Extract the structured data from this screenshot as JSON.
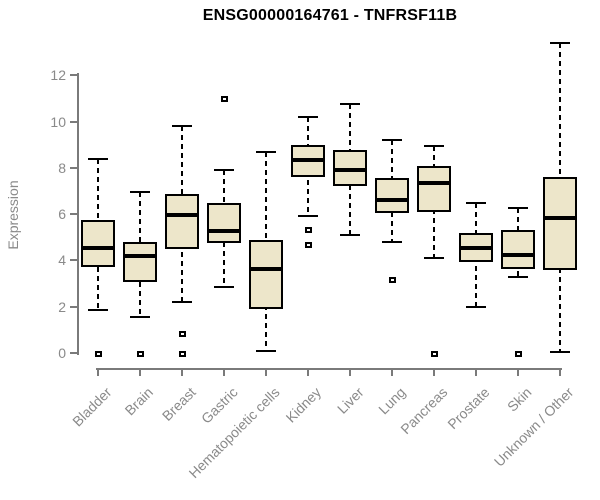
{
  "title": "ENSG00000164761 - TNFRSF11B",
  "chart_data": {
    "type": "boxplot",
    "title": "ENSG00000164761 - TNFRSF11B",
    "xlabel": "",
    "ylabel": "Expression",
    "yticks": [
      0,
      2,
      4,
      6,
      8,
      10,
      12
    ],
    "ylim": [
      0,
      13.5
    ],
    "grid": false,
    "legend": "none",
    "categories": [
      "Bladder",
      "Brain",
      "Breast",
      "Gastric",
      "Hematopoietic cells",
      "Kidney",
      "Liver",
      "Lung",
      "Pancreas",
      "Prostate",
      "Skin",
      "Unknown / Other"
    ],
    "series": [
      {
        "name": "Bladder",
        "whisker_low": 1.85,
        "q1": 3.7,
        "median": 4.55,
        "q3": 5.75,
        "whisker_high": 8.4,
        "outliers": [
          0
        ]
      },
      {
        "name": "Brain",
        "whisker_low": 1.55,
        "q1": 3.05,
        "median": 4.2,
        "q3": 4.8,
        "whisker_high": 6.95,
        "outliers": [
          0
        ]
      },
      {
        "name": "Breast",
        "whisker_low": 2.2,
        "q1": 4.5,
        "median": 5.95,
        "q3": 6.85,
        "whisker_high": 9.8,
        "outliers": [
          0.85,
          0
        ]
      },
      {
        "name": "Gastric",
        "whisker_low": 2.85,
        "q1": 4.75,
        "median": 5.25,
        "q3": 6.5,
        "whisker_high": 7.9,
        "outliers": [
          11.0
        ]
      },
      {
        "name": "Hematopoietic cells",
        "whisker_low": 0.1,
        "q1": 1.9,
        "median": 3.65,
        "q3": 4.9,
        "whisker_high": 8.7,
        "outliers": []
      },
      {
        "name": "Kidney",
        "whisker_low": 5.9,
        "q1": 7.6,
        "median": 8.35,
        "q3": 9.0,
        "whisker_high": 10.2,
        "outliers": [
          5.35,
          4.7
        ]
      },
      {
        "name": "Liver",
        "whisker_low": 5.1,
        "q1": 7.2,
        "median": 7.9,
        "q3": 8.75,
        "whisker_high": 10.75,
        "outliers": []
      },
      {
        "name": "Lung",
        "whisker_low": 4.8,
        "q1": 6.05,
        "median": 6.6,
        "q3": 7.55,
        "whisker_high": 9.2,
        "outliers": [
          3.2
        ]
      },
      {
        "name": "Pancreas",
        "whisker_low": 4.1,
        "q1": 6.1,
        "median": 7.35,
        "q3": 8.1,
        "whisker_high": 8.95,
        "outliers": [
          0
        ]
      },
      {
        "name": "Prostate",
        "whisker_low": 2.0,
        "q1": 3.95,
        "median": 4.55,
        "q3": 5.2,
        "whisker_high": 6.5,
        "outliers": []
      },
      {
        "name": "Skin",
        "whisker_low": 3.3,
        "q1": 3.65,
        "median": 4.25,
        "q3": 5.3,
        "whisker_high": 6.25,
        "outliers": [
          0
        ]
      },
      {
        "name": "Unknown / Other",
        "whisker_low": 0.05,
        "q1": 3.6,
        "median": 5.85,
        "q3": 7.6,
        "whisker_high": 13.4,
        "outliers": []
      }
    ],
    "colors": {
      "box_fill": "#EDE6CA",
      "box_stroke": "#000000",
      "median": "#000000",
      "whisker": "#000000",
      "axis_line": "#7a7a7a",
      "axis_text": "#8a8a8a",
      "title": "#000000",
      "background": "#FFFFFF"
    }
  }
}
